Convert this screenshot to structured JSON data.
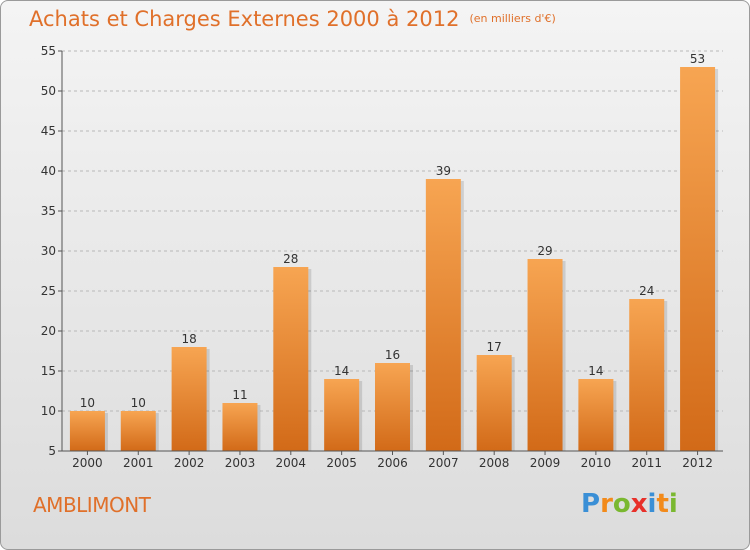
{
  "title": "Achats et Charges Externes 2000 à 2012",
  "unit": "(en milliers d'€)",
  "commune": "AMBLIMONT",
  "logo": {
    "text": "Proxiti",
    "letters": [
      {
        "ch": "P",
        "color": "#3a8fd6"
      },
      {
        "ch": "r",
        "color": "#f28a1a"
      },
      {
        "ch": "o",
        "color": "#7ab830"
      },
      {
        "ch": "x",
        "color": "#e8302a"
      },
      {
        "ch": "i",
        "color": "#3a8fd6"
      },
      {
        "ch": "t",
        "color": "#f28a1a"
      },
      {
        "ch": "i",
        "color": "#7ab830"
      }
    ]
  },
  "chart_data": {
    "type": "bar",
    "title": "Achats et Charges Externes 2000 à 2012",
    "subtitle": "(en milliers d'€)",
    "categories": [
      "2000",
      "2001",
      "2002",
      "2003",
      "2004",
      "2005",
      "2006",
      "2007",
      "2008",
      "2009",
      "2010",
      "2011",
      "2012"
    ],
    "values": [
      10,
      10,
      18,
      11,
      28,
      14,
      16,
      39,
      17,
      29,
      14,
      24,
      53
    ],
    "ylim": [
      5,
      55
    ],
    "yticks": [
      5,
      10,
      15,
      20,
      25,
      30,
      35,
      40,
      45,
      50,
      55
    ],
    "grid": "horizontal dashed",
    "bar_color_top": "#f7a552",
    "bar_color_bottom": "#d26a18"
  }
}
